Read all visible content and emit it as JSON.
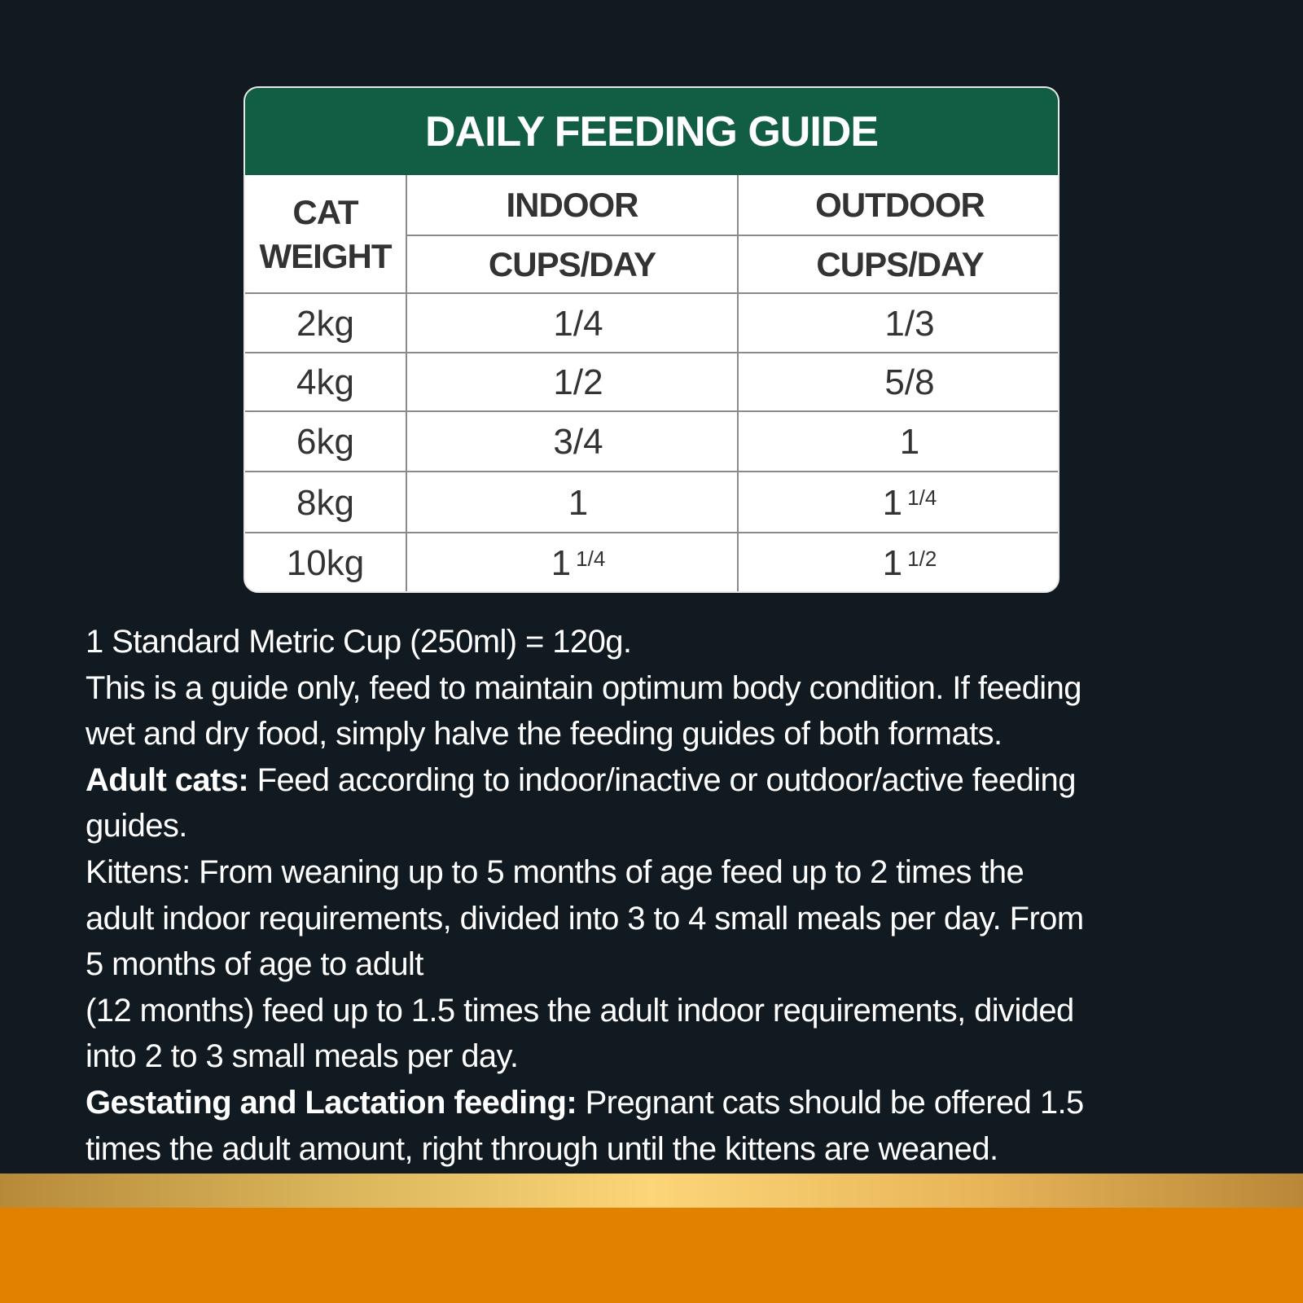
{
  "table": {
    "title": "DAILY FEEDING GUIDE",
    "headers": {
      "weight_line1": "CAT",
      "weight_line2": "WEIGHT",
      "indoor": "INDOOR",
      "outdoor": "OUTDOOR",
      "indoor_unit": "CUPS/DAY",
      "outdoor_unit": "CUPS/DAY"
    },
    "rows": [
      {
        "weight": "2kg",
        "indoor": "1/4",
        "indoor_frac": "",
        "outdoor": "1/3",
        "outdoor_frac": ""
      },
      {
        "weight": "4kg",
        "indoor": "1/2",
        "indoor_frac": "",
        "outdoor": "5/8",
        "outdoor_frac": ""
      },
      {
        "weight": "6kg",
        "indoor": "3/4",
        "indoor_frac": "",
        "outdoor": "1",
        "outdoor_frac": ""
      },
      {
        "weight": "8kg",
        "indoor": "1",
        "indoor_frac": "",
        "outdoor": "1",
        "outdoor_frac": "1/4"
      },
      {
        "weight": "10kg",
        "indoor": "1",
        "indoor_frac": "1/4",
        "outdoor": "1",
        "outdoor_frac": "1/2"
      }
    ]
  },
  "notes": {
    "line1": "1 Standard Metric Cup (250ml) = 120g.",
    "line2": "This is a guide only, feed to maintain optimum body condition. If feeding",
    "line3": "wet and dry food, simply halve the feeding guides of both formats.",
    "adult_label": "Adult cats:",
    "line4": " Feed according to indoor/inactive or outdoor/active feeding",
    "line5": "guides.",
    "line6": "Kittens: From weaning up to 5 months of age feed up to 2 times the",
    "line7": "adult indoor requirements, divided into 3 to 4 small meals per day. From",
    "line8": "5 months of age to adult",
    "line9": "(12 months) feed up to 1.5 times the adult indoor requirements, divided",
    "line10": "into 2 to 3 small meals per day.",
    "gestating_label": "Gestating and Lactation feeding:",
    "line11": " Pregnant cats should be offered 1.5",
    "line12": "times the adult amount, right through until the kittens are weaned."
  },
  "colors": {
    "background": "#111a20",
    "header_green": "#115e44",
    "gold": "#fcd578",
    "orange": "#e08100"
  }
}
